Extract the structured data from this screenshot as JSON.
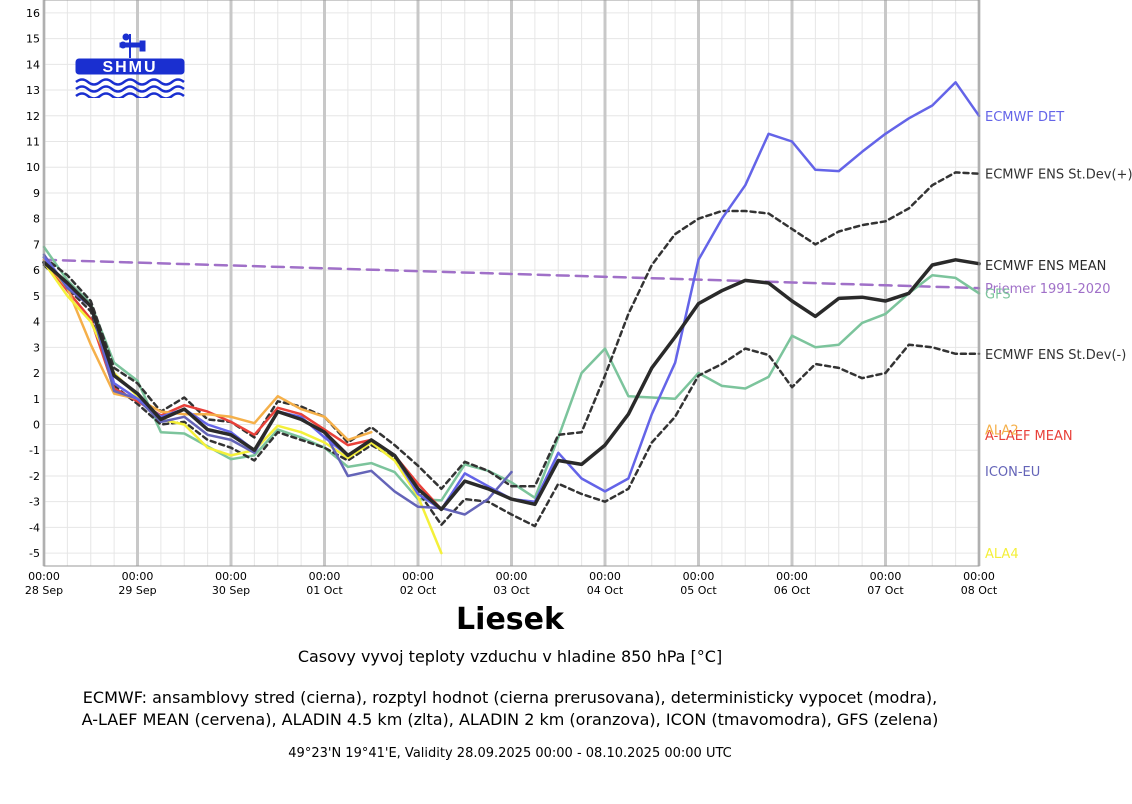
{
  "chart_data": {
    "type": "line",
    "title": "Liesek",
    "subtitle": "Casovy vyvoj teploty vzduchu v hladine 850 hPa [°C]",
    "description": [
      "ECMWF: ansamblovy stred (cierna), rozptyl hodnot (cierna prerusovana), deterministicky vypocet (modra),",
      "A-LAEF MEAN (cervena), ALADIN 4.5 km (zlta), ALADIN 2 km (oranzova), ICON (tmavomodra), GFS (zelena)"
    ],
    "validity": "49°23'N 19°41'E, Validity 28.09.2025 00:00 - 08.10.2025 00:00 UTC",
    "xlabel": "",
    "ylabel": "",
    "x_unit": "days since 28 Sep 00:00 UTC",
    "xlim": [
      0,
      10
    ],
    "ylim": [
      -5.5,
      16.5
    ],
    "y_ticks": [
      -5,
      -4,
      -3,
      -2,
      -1,
      0,
      1,
      2,
      3,
      4,
      5,
      6,
      7,
      8,
      9,
      10,
      11,
      12,
      13,
      14,
      15,
      16
    ],
    "x_ticks": [
      {
        "x": 0,
        "l1": "00:00",
        "l2": "28 Sep"
      },
      {
        "x": 1,
        "l1": "00:00",
        "l2": "29 Sep"
      },
      {
        "x": 2,
        "l1": "00:00",
        "l2": "30 Sep"
      },
      {
        "x": 3,
        "l1": "00:00",
        "l2": "01 Oct"
      },
      {
        "x": 4,
        "l1": "00:00",
        "l2": "02 Oct"
      },
      {
        "x": 5,
        "l1": "00:00",
        "l2": "03 Oct"
      },
      {
        "x": 6,
        "l1": "00:00",
        "l2": "04 Oct"
      },
      {
        "x": 7,
        "l1": "00:00",
        "l2": "05 Oct"
      },
      {
        "x": 8,
        "l1": "00:00",
        "l2": "06 Oct"
      },
      {
        "x": 9,
        "l1": "00:00",
        "l2": "07 Oct"
      },
      {
        "x": 10,
        "l1": "00:00",
        "l2": "08 Oct"
      }
    ],
    "grid": true,
    "legend": "right of plot, labels at series end",
    "series": [
      {
        "name": "Priemer 1991-2020",
        "color": "#a070c8",
        "dash": "12 7",
        "width": 2.5,
        "label_y": 5.3,
        "x": [
          0,
          10
        ],
        "y": [
          6.4,
          5.3
        ]
      },
      {
        "name": "GFS",
        "color": "#7cc49c",
        "dash": "",
        "width": 2.5,
        "label_y": 5.1,
        "x": [
          0,
          0.25,
          0.5,
          0.75,
          1,
          1.25,
          1.5,
          1.75,
          2,
          2.25,
          2.5,
          2.75,
          3,
          3.25,
          3.5,
          3.75,
          4,
          4.25,
          4.5,
          4.75,
          5,
          5.25,
          5.5,
          5.75,
          6,
          6.25,
          6.5,
          6.75,
          7,
          7.25,
          7.5,
          7.75,
          8,
          8.25,
          8.5,
          8.75,
          9,
          9.25,
          9.5,
          9.75,
          10
        ],
        "y": [
          6.9,
          5.6,
          4.7,
          2.4,
          1.7,
          -0.3,
          -0.35,
          -0.85,
          -1.35,
          -1.2,
          -0.2,
          -0.5,
          -0.9,
          -1.65,
          -1.5,
          -1.85,
          -2.9,
          -2.95,
          -1.55,
          -1.8,
          -2.25,
          -2.85,
          -0.5,
          2.0,
          2.95,
          1.1,
          1.05,
          1.0,
          2.0,
          1.5,
          1.4,
          1.85,
          3.45,
          3.0,
          3.1,
          3.95,
          4.3,
          5.1,
          5.8,
          5.7,
          5.1
        ]
      },
      {
        "name": "ECMWF ENS St.Dev(-)",
        "color": "#333333",
        "dash": "5 4",
        "width": 2.5,
        "label_y": 2.75,
        "x": [
          0,
          0.25,
          0.5,
          0.75,
          1,
          1.25,
          1.5,
          1.75,
          2,
          2.25,
          2.5,
          2.75,
          3,
          3.25,
          3.5,
          3.75,
          4,
          4.25,
          4.5,
          4.75,
          5,
          5.25,
          5.5,
          5.75,
          6,
          6.25,
          6.5,
          6.75,
          7,
          7.25,
          7.5,
          7.75,
          8,
          8.25,
          8.5,
          8.75,
          9,
          9.25,
          9.5,
          9.75,
          10
        ],
        "y": [
          6.2,
          5.3,
          4.4,
          1.5,
          0.8,
          0.0,
          0.1,
          -0.6,
          -0.9,
          -1.4,
          -0.3,
          -0.6,
          -0.9,
          -1.4,
          -0.8,
          -1.3,
          -2.6,
          -3.9,
          -2.9,
          -3.0,
          -3.5,
          -3.95,
          -2.3,
          -2.7,
          -3.0,
          -2.5,
          -0.7,
          0.3,
          1.9,
          2.35,
          2.95,
          2.7,
          1.45,
          2.35,
          2.2,
          1.8,
          2.0,
          3.1,
          3.0,
          2.75,
          2.75
        ]
      },
      {
        "name": "ECMWF ENS St.Dev(+)",
        "color": "#333333",
        "dash": "5 4",
        "width": 2.5,
        "label_y": 9.75,
        "x": [
          0,
          0.25,
          0.5,
          0.75,
          1,
          1.25,
          1.5,
          1.75,
          2,
          2.25,
          2.5,
          2.75,
          3,
          3.25,
          3.5,
          3.75,
          4,
          4.25,
          4.5,
          4.75,
          5,
          5.25,
          5.5,
          5.75,
          6,
          6.25,
          6.5,
          6.75,
          7,
          7.25,
          7.5,
          7.75,
          8,
          8.25,
          8.5,
          8.75,
          9,
          9.25,
          9.5,
          9.75,
          10
        ],
        "y": [
          6.5,
          5.8,
          4.8,
          2.2,
          1.6,
          0.5,
          1.05,
          0.2,
          0.1,
          -0.5,
          0.9,
          0.7,
          0.3,
          -0.7,
          -0.1,
          -0.8,
          -1.6,
          -2.5,
          -1.45,
          -1.8,
          -2.4,
          -2.4,
          -0.4,
          -0.3,
          1.9,
          4.3,
          6.2,
          7.4,
          8.0,
          8.3,
          8.3,
          8.2,
          7.6,
          7.0,
          7.5,
          7.75,
          7.9,
          8.4,
          9.3,
          9.8,
          9.75
        ]
      },
      {
        "name": "A-LAEF MEAN",
        "color": "#e8413a",
        "dash": "",
        "width": 2.5,
        "label_y": -0.4,
        "x": [
          0,
          0.25,
          0.5,
          0.75,
          1,
          1.25,
          1.5,
          1.75,
          2,
          2.25,
          2.5,
          2.75,
          3,
          3.25,
          3.5,
          3.75,
          4,
          4.25
        ],
        "y": [
          6.4,
          5.2,
          4.1,
          1.4,
          0.9,
          0.35,
          0.75,
          0.5,
          0.1,
          -0.4,
          0.65,
          0.4,
          -0.2,
          -0.8,
          -0.6,
          -1.2,
          -2.3,
          -3.3
        ]
      },
      {
        "name": "ALA2",
        "color": "#f5b04a",
        "dash": "",
        "width": 2.5,
        "label_y": -0.2,
        "x": [
          0,
          0.25,
          0.5,
          0.75,
          1,
          1.25,
          1.5,
          1.75,
          2,
          2.25,
          2.5,
          2.75,
          3,
          3.25,
          3.5
        ],
        "y": [
          6.4,
          5.3,
          3.1,
          1.2,
          1.0,
          0.5,
          0.4,
          0.4,
          0.3,
          0.05,
          1.1,
          0.6,
          0.3,
          -0.6,
          -0.3
        ]
      },
      {
        "name": "ALA4",
        "color": "#f4f03a",
        "dash": "",
        "width": 2.5,
        "label_y": -5.0,
        "x": [
          0,
          0.25,
          0.5,
          0.75,
          1,
          1.25,
          1.5,
          1.75,
          2,
          2.25,
          2.5,
          2.75,
          3,
          3.25,
          3.5,
          3.75,
          4,
          4.25
        ],
        "y": [
          6.3,
          5.0,
          4.0,
          2.0,
          1.1,
          0.2,
          0.0,
          -0.9,
          -1.2,
          -1.0,
          -0.05,
          -0.3,
          -0.7,
          -1.3,
          -0.7,
          -1.4,
          -2.8,
          -5.0
        ]
      },
      {
        "name": "ICON-EU",
        "color": "#6464b8",
        "dash": "",
        "width": 2.5,
        "label_y": -1.8,
        "x": [
          0,
          0.25,
          0.5,
          0.75,
          1,
          1.25,
          1.5,
          1.75,
          2,
          2.25,
          2.5,
          2.75,
          3,
          3.25,
          3.5,
          3.75,
          4,
          4.25,
          4.5,
          4.75,
          5
        ],
        "y": [
          6.6,
          5.3,
          4.6,
          1.3,
          1.0,
          0.1,
          0.3,
          -0.4,
          -0.6,
          -1.1,
          0.5,
          0.2,
          -0.3,
          -2.0,
          -1.8,
          -2.6,
          -3.2,
          -3.25,
          -3.5,
          -2.9,
          -1.85
        ]
      },
      {
        "name": "ECMWF DET",
        "color": "#6464e8",
        "dash": "",
        "width": 2.5,
        "label_y": 12.0,
        "x": [
          0,
          0.25,
          0.5,
          0.75,
          1,
          1.25,
          1.5,
          1.75,
          2,
          2.25,
          2.5,
          2.75,
          3,
          3.25,
          3.5,
          3.75,
          4,
          4.25,
          4.5,
          4.75,
          5,
          5.25,
          5.5,
          5.75,
          6,
          6.25,
          6.5,
          6.75,
          7,
          7.25,
          7.5,
          7.75,
          8,
          8.25,
          8.5,
          8.75,
          9,
          9.25,
          9.5,
          9.75,
          10
        ],
        "y": [
          6.5,
          5.4,
          4.6,
          1.6,
          1.0,
          0.3,
          0.6,
          0.0,
          -0.3,
          -1.0,
          0.5,
          0.3,
          -0.5,
          -1.2,
          -0.6,
          -1.2,
          -2.7,
          -3.3,
          -1.9,
          -2.4,
          -2.9,
          -3.0,
          -1.1,
          -2.1,
          -2.6,
          -2.1,
          0.4,
          2.4,
          6.4,
          8.0,
          9.3,
          11.3,
          11.0,
          9.9,
          9.85,
          10.6,
          11.3,
          11.9,
          12.4,
          13.3,
          12.0
        ]
      },
      {
        "name": "ECMWF ENS MEAN",
        "color": "#2a2a2a",
        "dash": "",
        "width": 3.5,
        "label_y": 6.2,
        "x": [
          0,
          0.25,
          0.5,
          0.75,
          1,
          1.25,
          1.5,
          1.75,
          2,
          2.25,
          2.5,
          2.75,
          3,
          3.25,
          3.5,
          3.75,
          4,
          4.25,
          4.5,
          4.75,
          5,
          5.25,
          5.5,
          5.75,
          6,
          6.25,
          6.5,
          6.75,
          7,
          7.25,
          7.5,
          7.75,
          8,
          8.25,
          8.5,
          8.75,
          9,
          9.25,
          9.5,
          9.75,
          10
        ],
        "y": [
          6.3,
          5.5,
          4.6,
          1.9,
          1.2,
          0.2,
          0.6,
          -0.2,
          -0.4,
          -1.0,
          0.5,
          0.2,
          -0.3,
          -1.2,
          -0.6,
          -1.2,
          -2.5,
          -3.3,
          -2.2,
          -2.5,
          -2.9,
          -3.1,
          -1.4,
          -1.55,
          -0.8,
          0.4,
          2.2,
          3.4,
          4.7,
          5.2,
          5.6,
          5.5,
          4.8,
          4.2,
          4.9,
          4.95,
          4.8,
          5.1,
          6.2,
          6.4,
          6.25
        ]
      }
    ]
  }
}
